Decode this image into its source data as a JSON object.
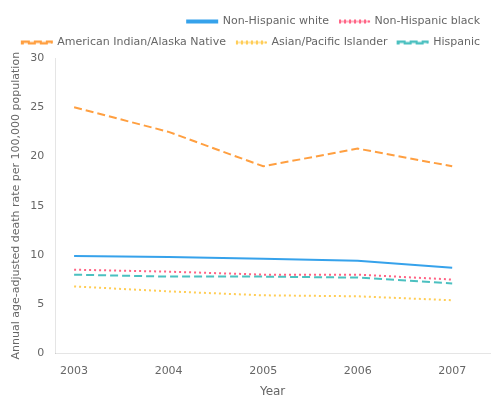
{
  "chart_data": {
    "type": "line",
    "xlabel": "Year",
    "ylabel": "Annual age-adjusted death rate per 100,000 population",
    "x": [
      2003,
      2004,
      2005,
      2006,
      2007
    ],
    "series": [
      {
        "name": "Non-Hispanic white",
        "values": [
          9.9,
          9.8,
          9.6,
          9.4,
          8.7
        ],
        "line_style": "solid"
      },
      {
        "name": "Non-Hispanic black",
        "values": [
          8.5,
          8.3,
          8.0,
          8.0,
          7.5
        ],
        "line_style": "dotted"
      },
      {
        "name": "American Indian/Alaska Native",
        "values": [
          25.0,
          22.5,
          19.0,
          20.8,
          19.0
        ],
        "line_style": "dashed"
      },
      {
        "name": "Asian/Pacific Islander",
        "values": [
          6.8,
          6.3,
          5.9,
          5.8,
          5.4
        ],
        "line_style": "dotted"
      },
      {
        "name": "Hispanic",
        "values": [
          8.0,
          7.8,
          7.8,
          7.7,
          7.1
        ],
        "line_style": "dashed"
      }
    ],
    "xlim": [
      2002.8,
      2007.4
    ],
    "xticks": [
      2003,
      2004,
      2005,
      2006,
      2007
    ],
    "ylim": [
      0,
      30
    ],
    "yticks": [
      0,
      5,
      10,
      15,
      20,
      25,
      30
    ],
    "grid": false,
    "legend": "upper right"
  }
}
